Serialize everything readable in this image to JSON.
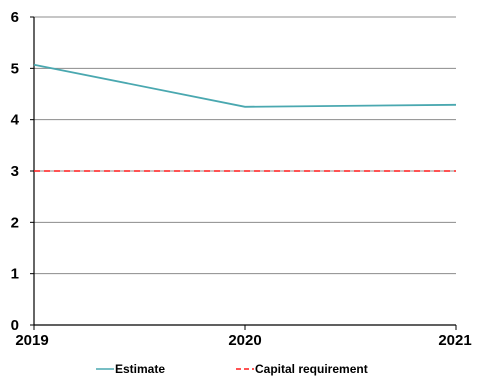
{
  "chart_data": {
    "type": "line",
    "title": "",
    "xlabel": "",
    "ylabel": "",
    "categories": [
      "2019",
      "2020",
      "2021"
    ],
    "ylim": [
      0,
      6
    ],
    "yticks": [
      "0",
      "1",
      "2",
      "3",
      "4",
      "5",
      "6"
    ],
    "grid": "horizontal",
    "legend_position": "bottom",
    "series": [
      {
        "name": "Estimate",
        "values": [
          5.07,
          4.25,
          4.29
        ],
        "color": "#4aa8b0",
        "style": "solid"
      },
      {
        "name": "Capital requirement",
        "values": [
          3.0,
          3.0,
          3.0
        ],
        "color": "#ff1a1a",
        "style": "dashed"
      }
    ]
  }
}
